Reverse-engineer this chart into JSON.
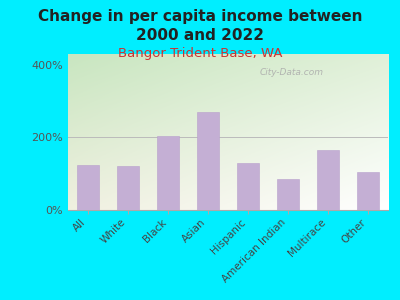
{
  "title": "Change in per capita income between\n2000 and 2022",
  "subtitle": "Bangor Trident Base, WA",
  "categories": [
    "All",
    "White",
    "Black",
    "Asian",
    "Hispanic",
    "American Indian",
    "Multirace",
    "Other"
  ],
  "values": [
    125,
    122,
    205,
    270,
    130,
    85,
    165,
    105
  ],
  "bar_color": "#c4afd4",
  "bar_edge_color": "#b8a0cc",
  "background_outer": "#00eeff",
  "plot_bg_top_left": "#c8e6c0",
  "plot_bg_bottom_right": "#f0f0e0",
  "title_color": "#222222",
  "subtitle_color": "#cc3333",
  "ytick_labels": [
    "0%",
    "200%",
    "400%"
  ],
  "ytick_values": [
    0,
    200,
    400
  ],
  "ylim": [
    0,
    430
  ],
  "watermark": "City-Data.com",
  "title_fontsize": 11,
  "subtitle_fontsize": 9.5,
  "tick_label_fontsize": 7.5,
  "ytick_fontsize": 8
}
